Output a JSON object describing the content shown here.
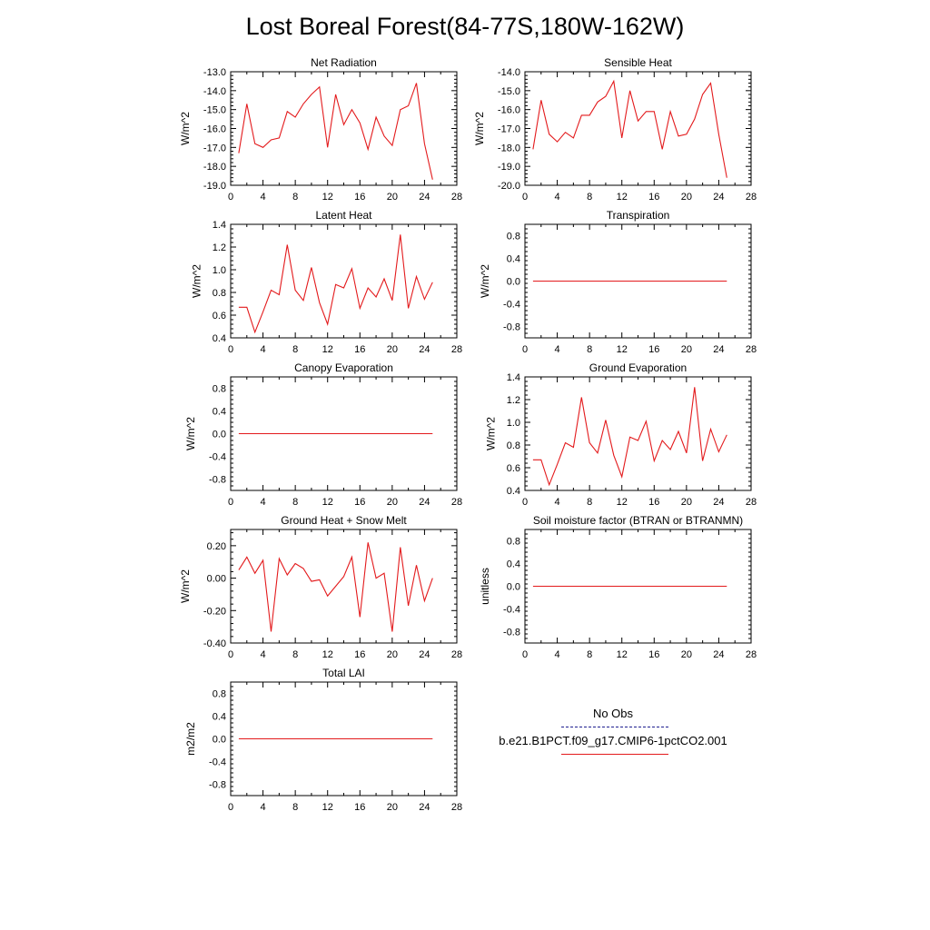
{
  "title": "Lost Boreal Forest(84-77S,180W-162W)",
  "legend": {
    "items": [
      {
        "label": "No Obs",
        "color": "#1f1f8f",
        "style": "dashed"
      },
      {
        "label": "b.e21.B1PCT.f09_g17.CMIP6-1pctCO2.001",
        "color": "#e31a1c",
        "style": "solid"
      }
    ]
  },
  "chart_data": [
    {
      "type": "line",
      "title": "Net Radiation",
      "xlabel": "",
      "ylabel": "W/m^2",
      "xlim": [
        0,
        28
      ],
      "ylim": [
        -19.0,
        -13.0
      ],
      "xticks": [
        "0",
        "4",
        "8",
        "12",
        "16",
        "20",
        "24",
        "28"
      ],
      "yticks": [
        "-19.0",
        "-18.0",
        "-17.0",
        "-16.0",
        "-15.0",
        "-14.0",
        "-13.0"
      ],
      "series": [
        {
          "color": "#e31a1c",
          "x": [
            1,
            2,
            3,
            4,
            5,
            6,
            7,
            8,
            9,
            10,
            11,
            12,
            13,
            14,
            15,
            16,
            17,
            18,
            19,
            20,
            21,
            22,
            23,
            24,
            25
          ],
          "y": [
            -17.3,
            -14.7,
            -16.8,
            -17.0,
            -16.6,
            -16.5,
            -15.1,
            -15.4,
            -14.7,
            -14.2,
            -13.8,
            -17.0,
            -14.2,
            -15.8,
            -15.0,
            -15.7,
            -17.1,
            -15.4,
            -16.4,
            -16.9,
            -15.0,
            -14.8,
            -13.6,
            -16.8,
            -18.7
          ]
        }
      ]
    },
    {
      "type": "line",
      "title": "Sensible Heat",
      "xlabel": "",
      "ylabel": "W/m^2",
      "xlim": [
        0,
        28
      ],
      "ylim": [
        -20.0,
        -14.0
      ],
      "xticks": [
        "0",
        "4",
        "8",
        "12",
        "16",
        "20",
        "24",
        "28"
      ],
      "yticks": [
        "-20.0",
        "-19.0",
        "-18.0",
        "-17.0",
        "-16.0",
        "-15.0",
        "-14.0"
      ],
      "series": [
        {
          "color": "#e31a1c",
          "x": [
            1,
            2,
            3,
            4,
            5,
            6,
            7,
            8,
            9,
            10,
            11,
            12,
            13,
            14,
            15,
            16,
            17,
            18,
            19,
            20,
            21,
            22,
            23,
            24,
            25
          ],
          "y": [
            -18.1,
            -15.5,
            -17.3,
            -17.7,
            -17.2,
            -17.5,
            -16.3,
            -16.3,
            -15.6,
            -15.3,
            -14.5,
            -17.5,
            -15.0,
            -16.6,
            -16.1,
            -16.1,
            -18.1,
            -16.1,
            -17.4,
            -17.3,
            -16.5,
            -15.2,
            -14.6,
            -17.3,
            -19.6
          ]
        }
      ]
    },
    {
      "type": "line",
      "title": "Latent Heat",
      "xlabel": "",
      "ylabel": "W/m^2",
      "xlim": [
        0,
        28
      ],
      "ylim": [
        0.4,
        1.4
      ],
      "xticks": [
        "0",
        "4",
        "8",
        "12",
        "16",
        "20",
        "24",
        "28"
      ],
      "yticks": [
        "0.4",
        "0.6",
        "0.8",
        "1.0",
        "1.2",
        "1.4"
      ],
      "series": [
        {
          "color": "#e31a1c",
          "x": [
            1,
            2,
            3,
            4,
            5,
            6,
            7,
            8,
            9,
            10,
            11,
            12,
            13,
            14,
            15,
            16,
            17,
            18,
            19,
            20,
            21,
            22,
            23,
            24,
            25
          ],
          "y": [
            0.67,
            0.67,
            0.45,
            0.63,
            0.82,
            0.78,
            1.22,
            0.82,
            0.73,
            1.02,
            0.71,
            0.52,
            0.87,
            0.84,
            1.01,
            0.66,
            0.84,
            0.76,
            0.92,
            0.73,
            1.31,
            0.66,
            0.94,
            0.74,
            0.89
          ]
        }
      ]
    },
    {
      "type": "line",
      "title": "Transpiration",
      "xlabel": "",
      "ylabel": "W/m^2",
      "xlim": [
        0,
        28
      ],
      "ylim": [
        -1.0,
        1.0
      ],
      "xticks": [
        "0",
        "4",
        "8",
        "12",
        "16",
        "20",
        "24",
        "28"
      ],
      "yticks": [
        "-0.8",
        "-0.4",
        "0.0",
        "0.4",
        "0.8"
      ],
      "series": [
        {
          "color": "#e31a1c",
          "x": [
            1,
            25
          ],
          "y": [
            0.0,
            0.0
          ]
        }
      ]
    },
    {
      "type": "line",
      "title": "Canopy Evaporation",
      "xlabel": "",
      "ylabel": "W/m^2",
      "xlim": [
        0,
        28
      ],
      "ylim": [
        -1.0,
        1.0
      ],
      "xticks": [
        "0",
        "4",
        "8",
        "12",
        "16",
        "20",
        "24",
        "28"
      ],
      "yticks": [
        "-0.8",
        "-0.4",
        "0.0",
        "0.4",
        "0.8"
      ],
      "series": [
        {
          "color": "#e31a1c",
          "x": [
            1,
            25
          ],
          "y": [
            0.0,
            0.0
          ]
        }
      ]
    },
    {
      "type": "line",
      "title": "Ground Evaporation",
      "xlabel": "",
      "ylabel": "W/m^2",
      "xlim": [
        0,
        28
      ],
      "ylim": [
        0.4,
        1.4
      ],
      "xticks": [
        "0",
        "4",
        "8",
        "12",
        "16",
        "20",
        "24",
        "28"
      ],
      "yticks": [
        "0.4",
        "0.6",
        "0.8",
        "1.0",
        "1.2",
        "1.4"
      ],
      "series": [
        {
          "color": "#e31a1c",
          "x": [
            1,
            2,
            3,
            4,
            5,
            6,
            7,
            8,
            9,
            10,
            11,
            12,
            13,
            14,
            15,
            16,
            17,
            18,
            19,
            20,
            21,
            22,
            23,
            24,
            25
          ],
          "y": [
            0.67,
            0.67,
            0.45,
            0.63,
            0.82,
            0.78,
            1.22,
            0.82,
            0.73,
            1.02,
            0.71,
            0.52,
            0.87,
            0.84,
            1.01,
            0.66,
            0.84,
            0.76,
            0.92,
            0.73,
            1.31,
            0.66,
            0.94,
            0.74,
            0.89
          ]
        }
      ]
    },
    {
      "type": "line",
      "title": "Ground Heat + Snow Melt",
      "xlabel": "",
      "ylabel": "W/m^2",
      "xlim": [
        0,
        28
      ],
      "ylim": [
        -0.4,
        0.3
      ],
      "xticks": [
        "0",
        "4",
        "8",
        "12",
        "16",
        "20",
        "24",
        "28"
      ],
      "yticks": [
        "-0.40",
        "-0.20",
        "0.00",
        "0.20"
      ],
      "series": [
        {
          "color": "#e31a1c",
          "x": [
            1,
            2,
            3,
            4,
            5,
            6,
            7,
            8,
            9,
            10,
            11,
            12,
            13,
            14,
            15,
            16,
            17,
            18,
            19,
            20,
            21,
            22,
            23,
            24,
            25
          ],
          "y": [
            0.05,
            0.13,
            0.03,
            0.11,
            -0.33,
            0.12,
            0.02,
            0.09,
            0.06,
            -0.02,
            -0.01,
            -0.11,
            -0.05,
            0.01,
            0.13,
            -0.24,
            0.22,
            0.0,
            0.03,
            -0.33,
            0.19,
            -0.17,
            0.08,
            -0.14,
            0.0
          ]
        }
      ]
    },
    {
      "type": "line",
      "title": "Soil moisture factor (BTRAN or BTRANMN)",
      "xlabel": "",
      "ylabel": "unitless",
      "xlim": [
        0,
        28
      ],
      "ylim": [
        -1.0,
        1.0
      ],
      "xticks": [
        "0",
        "4",
        "8",
        "12",
        "16",
        "20",
        "24",
        "28"
      ],
      "yticks": [
        "-0.8",
        "-0.4",
        "0.0",
        "0.4",
        "0.8"
      ],
      "series": [
        {
          "color": "#e31a1c",
          "x": [
            1,
            25
          ],
          "y": [
            0.0,
            0.0
          ]
        }
      ]
    },
    {
      "type": "line",
      "title": "Total LAI",
      "xlabel": "",
      "ylabel": "m2/m2",
      "xlim": [
        0,
        28
      ],
      "ylim": [
        -1.0,
        1.0
      ],
      "xticks": [
        "0",
        "4",
        "8",
        "12",
        "16",
        "20",
        "24",
        "28"
      ],
      "yticks": [
        "-0.8",
        "-0.4",
        "0.0",
        "0.4",
        "0.8"
      ],
      "series": [
        {
          "color": "#e31a1c",
          "x": [
            1,
            25
          ],
          "y": [
            0.0,
            0.0
          ]
        }
      ]
    }
  ]
}
